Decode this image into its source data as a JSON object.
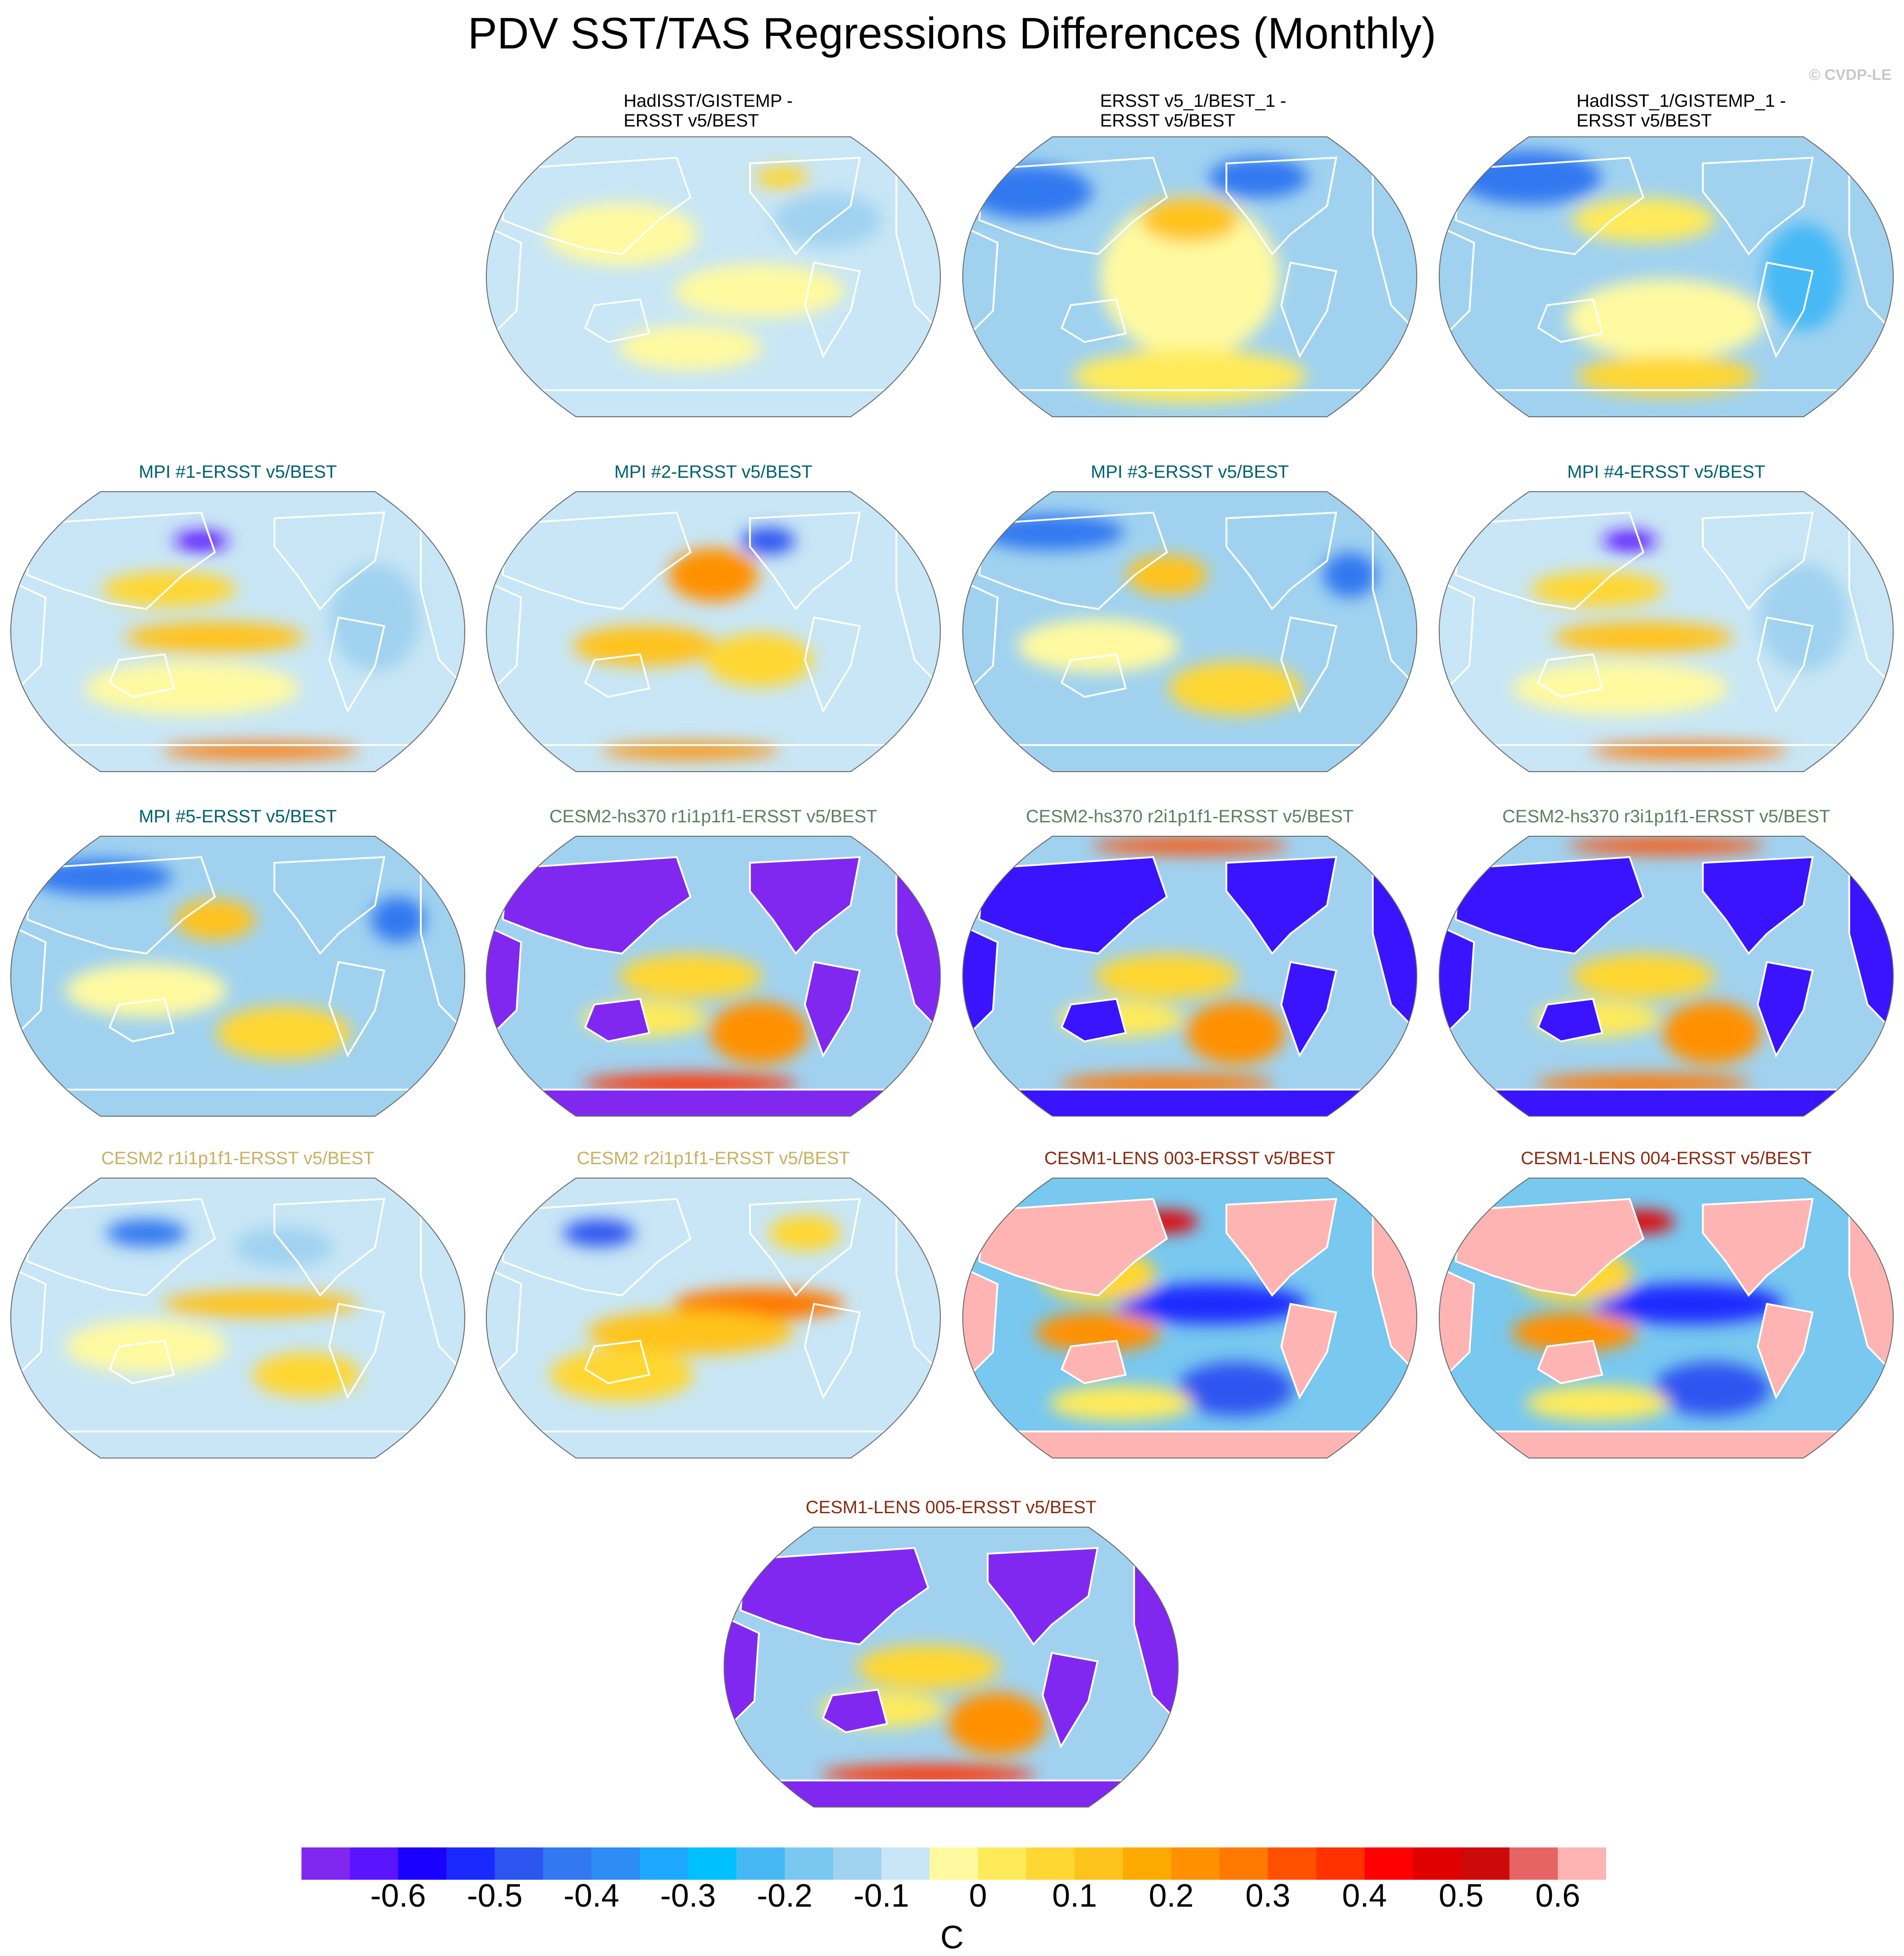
{
  "title": "PDV SST/TAS Regressions Differences (Monthly)",
  "credit": "© CVDP-LE",
  "panels": [
    {
      "title": "HadISST/GISTEMP -\nERSST v5/BEST",
      "color": "#000000",
      "style": "obs-small"
    },
    {
      "title": "ERSST v5_1/BEST_1 -\nERSST v5/BEST",
      "color": "#000000",
      "style": "obs-pacific"
    },
    {
      "title": "HadISST_1/GISTEMP_1 -\nERSST v5/BEST",
      "color": "#000000",
      "style": "obs-cool"
    },
    {
      "title": "MPI #1-ERSST v5/BEST",
      "color": "#006070",
      "style": "mpi"
    },
    {
      "title": "MPI #2-ERSST v5/BEST",
      "color": "#006070",
      "style": "mpi-warm"
    },
    {
      "title": "MPI #3-ERSST v5/BEST",
      "color": "#006070",
      "style": "mpi-cool"
    },
    {
      "title": "MPI #4-ERSST v5/BEST",
      "color": "#006070",
      "style": "mpi"
    },
    {
      "title": "MPI #5-ERSST v5/BEST",
      "color": "#006070",
      "style": "mpi-cool"
    },
    {
      "title": "CESM2-hs370 r1i1p1f1-ERSST v5/BEST",
      "color": "#5a8060",
      "style": "hs370"
    },
    {
      "title": "CESM2-hs370 r2i1p1f1-ERSST v5/BEST",
      "color": "#5a8060",
      "style": "hs370-blue"
    },
    {
      "title": "CESM2-hs370 r3i1p1f1-ERSST v5/BEST",
      "color": "#5a8060",
      "style": "hs370-blue"
    },
    {
      "title": "CESM2 r1i1p1f1-ERSST v5/BEST",
      "color": "#c8b060",
      "style": "cesm2"
    },
    {
      "title": "CESM2 r2i1p1f1-ERSST v5/BEST",
      "color": "#c8b060",
      "style": "cesm2-warm"
    },
    {
      "title": "CESM1-LENS 003-ERSST v5/BEST",
      "color": "#8a2a10",
      "style": "lens"
    },
    {
      "title": "CESM1-LENS 004-ERSST v5/BEST",
      "color": "#8a2a10",
      "style": "lens"
    },
    {
      "title": "CESM1-LENS 005-ERSST v5/BEST",
      "color": "#8a2a10",
      "style": "hs370"
    }
  ],
  "colorbar": {
    "colors": [
      "#8128f0",
      "#5a14ff",
      "#1a00ff",
      "#1a2aff",
      "#2d55f0",
      "#3278f0",
      "#2d8cf5",
      "#1ea8ff",
      "#00c0ff",
      "#46b9f5",
      "#78c8f0",
      "#a0d2f0",
      "#c8e6f5",
      "#fffaa0",
      "#ffeb5a",
      "#ffd732",
      "#ffc31e",
      "#ffaa00",
      "#ff9100",
      "#ff7800",
      "#ff5000",
      "#ff3200",
      "#ff0000",
      "#e10000",
      "#cd0a0a",
      "#e66464",
      "#ffb4b4"
    ],
    "tick_labels": [
      "-0.6",
      "-0.5",
      "-0.4",
      "-0.3",
      "-0.2",
      "-0.1",
      "0",
      "0.1",
      "0.2",
      "0.3",
      "0.4",
      "0.5",
      "0.6"
    ],
    "units": "C"
  }
}
